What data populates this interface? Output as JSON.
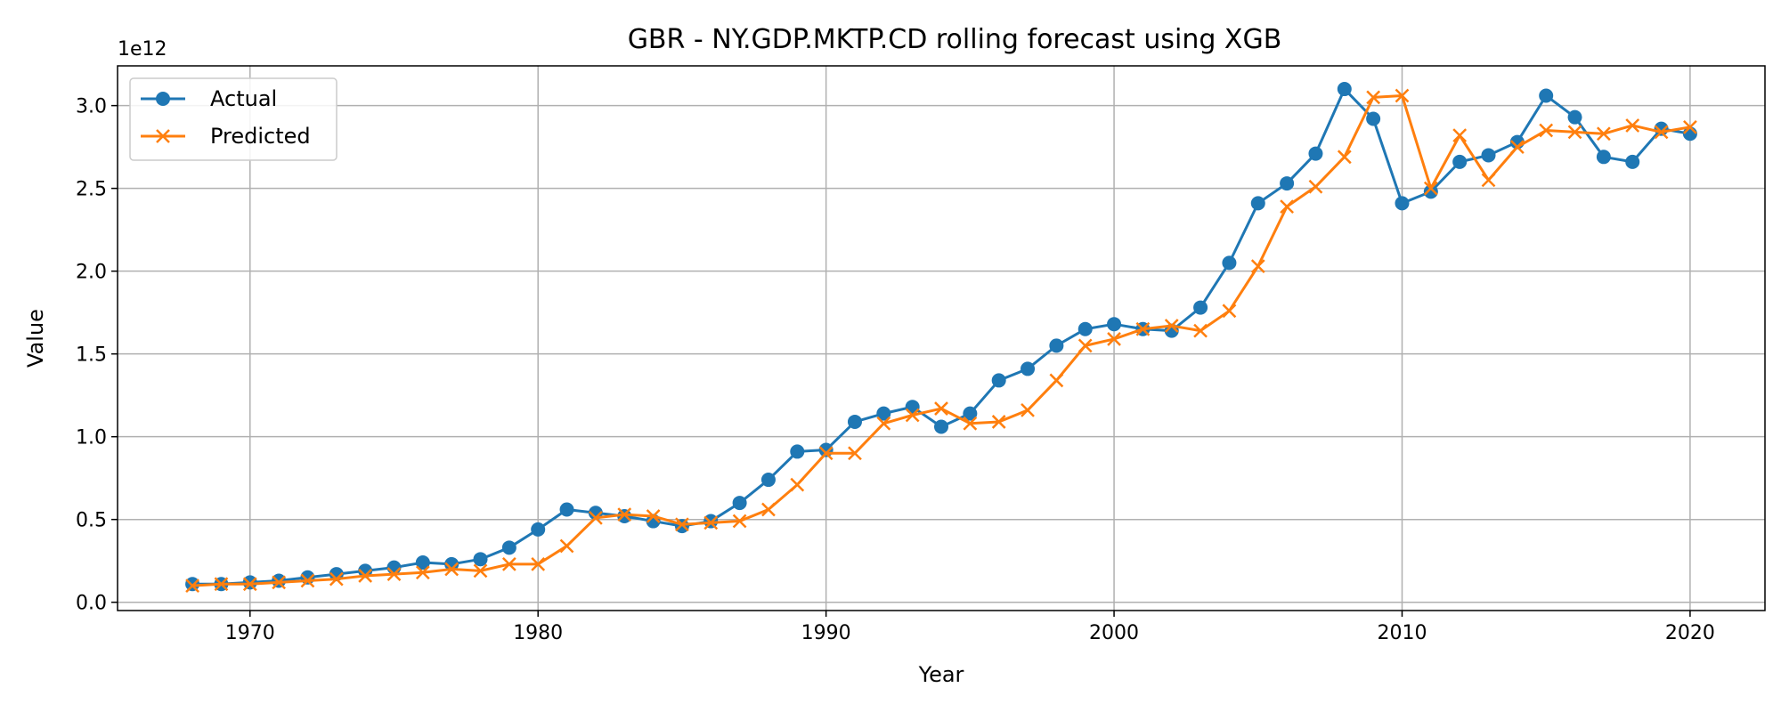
{
  "chart_data": {
    "type": "line",
    "title": "GBR - NY.GDP.MKTP.CD rolling forecast using XGB",
    "xlabel": "Year",
    "ylabel": "Value",
    "y_offset_text": "1e12",
    "xlim": [
      1965.4,
      2022.6
    ],
    "ylim": [
      -0.05,
      3.24
    ],
    "x_ticks": [
      1970,
      1980,
      1990,
      2000,
      2010,
      2020
    ],
    "y_ticks": [
      0.0,
      0.5,
      1.0,
      1.5,
      2.0,
      2.5,
      3.0
    ],
    "y_tick_labels": [
      "0.0",
      "0.5",
      "1.0",
      "1.5",
      "2.0",
      "2.5",
      "3.0"
    ],
    "grid": true,
    "legend_position": "top-left",
    "x": [
      1968,
      1969,
      1970,
      1971,
      1972,
      1973,
      1974,
      1975,
      1976,
      1977,
      1978,
      1979,
      1980,
      1981,
      1982,
      1983,
      1984,
      1985,
      1986,
      1987,
      1988,
      1989,
      1990,
      1991,
      1992,
      1993,
      1994,
      1995,
      1996,
      1997,
      1998,
      1999,
      2000,
      2001,
      2002,
      2003,
      2004,
      2005,
      2006,
      2007,
      2008,
      2009,
      2010,
      2011,
      2012,
      2013,
      2014,
      2015,
      2016,
      2017,
      2018,
      2019,
      2020
    ],
    "series": [
      {
        "name": "Actual",
        "color": "#1f77b4",
        "marker": "circle",
        "values": [
          0.11,
          0.11,
          0.12,
          0.13,
          0.15,
          0.17,
          0.19,
          0.21,
          0.24,
          0.23,
          0.26,
          0.33,
          0.44,
          0.56,
          0.54,
          0.52,
          0.49,
          0.46,
          0.49,
          0.6,
          0.74,
          0.91,
          0.92,
          1.09,
          1.14,
          1.18,
          1.06,
          1.14,
          1.34,
          1.41,
          1.55,
          1.65,
          1.68,
          1.65,
          1.64,
          1.78,
          2.05,
          2.41,
          2.53,
          2.71,
          3.1,
          2.92,
          2.41,
          2.48,
          2.66,
          2.7,
          2.78,
          3.06,
          2.93,
          2.69,
          2.66,
          2.86,
          2.83
        ]
      },
      {
        "name": "Predicted",
        "color": "#ff7f0e",
        "marker": "x",
        "values": [
          0.1,
          0.11,
          0.11,
          0.12,
          0.13,
          0.14,
          0.16,
          0.17,
          0.18,
          0.2,
          0.19,
          0.23,
          0.23,
          0.34,
          0.51,
          0.53,
          0.52,
          0.47,
          0.48,
          0.49,
          0.56,
          0.71,
          0.9,
          0.9,
          1.08,
          1.13,
          1.17,
          1.08,
          1.09,
          1.16,
          1.34,
          1.55,
          1.59,
          1.65,
          1.67,
          1.64,
          1.76,
          2.03,
          2.39,
          2.51,
          2.69,
          3.05,
          3.06,
          2.5,
          2.82,
          2.55,
          2.75,
          2.85,
          2.84,
          2.83,
          2.88,
          2.84,
          2.87
        ]
      }
    ]
  }
}
